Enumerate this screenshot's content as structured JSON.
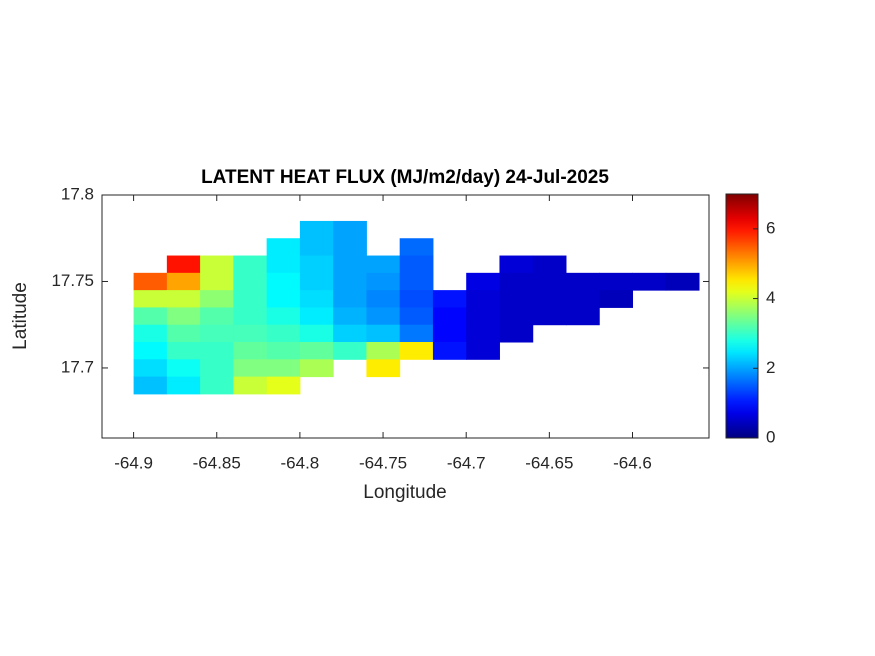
{
  "chart_data": {
    "type": "heatmap",
    "title": "LATENT HEAT FLUX (MJ/m2/day) 24-Jul-2025",
    "xlabel": "Longitude",
    "ylabel": "Latitude",
    "x": [
      -64.89,
      -64.87,
      -64.85,
      -64.83,
      -64.81,
      -64.79,
      -64.77,
      -64.75,
      -64.73,
      -64.71,
      -64.69,
      -64.67,
      -64.65,
      -64.63,
      -64.61,
      -64.59,
      -64.57
    ],
    "y": [
      17.79,
      17.78,
      17.77,
      17.76,
      17.75,
      17.74,
      17.73,
      17.72,
      17.71,
      17.7,
      17.69,
      17.68
    ],
    "z": [
      [
        null,
        null,
        null,
        null,
        null,
        null,
        null,
        null,
        null,
        null,
        null,
        null,
        null,
        null,
        null,
        null,
        null
      ],
      [
        null,
        null,
        null,
        null,
        null,
        2.2,
        2.0,
        null,
        null,
        null,
        null,
        null,
        null,
        null,
        null,
        null,
        null
      ],
      [
        null,
        null,
        null,
        null,
        2.5,
        2.2,
        2.0,
        null,
        1.6,
        null,
        null,
        null,
        null,
        null,
        null,
        null,
        null
      ],
      [
        null,
        6.0,
        4.0,
        3.0,
        2.5,
        2.3,
        2.0,
        2.0,
        1.5,
        null,
        null,
        0.6,
        0.5,
        null,
        null,
        null,
        null
      ],
      [
        5.5,
        5.0,
        4.0,
        3.0,
        2.6,
        2.3,
        2.0,
        1.9,
        1.5,
        null,
        0.7,
        0.5,
        0.5,
        0.5,
        0.5,
        0.5,
        0.4
      ],
      [
        4.0,
        4.0,
        3.6,
        3.0,
        2.6,
        2.4,
        2.0,
        1.8,
        1.4,
        1.0,
        0.6,
        0.5,
        0.5,
        0.5,
        0.4,
        null,
        null
      ],
      [
        3.2,
        3.5,
        3.2,
        3.0,
        2.8,
        2.5,
        2.1,
        1.9,
        1.5,
        0.9,
        0.6,
        0.5,
        0.5,
        0.5,
        null,
        null,
        null
      ],
      [
        2.8,
        3.2,
        3.1,
        3.1,
        3.0,
        2.8,
        2.3,
        2.2,
        1.7,
        0.9,
        0.6,
        0.5,
        null,
        null,
        null,
        null,
        null
      ],
      [
        2.6,
        3.0,
        3.0,
        3.3,
        3.2,
        3.3,
        3.0,
        3.8,
        4.5,
        1.0,
        0.6,
        null,
        null,
        null,
        null,
        null,
        null
      ],
      [
        2.4,
        2.7,
        3.0,
        3.5,
        3.5,
        3.8,
        null,
        4.5,
        null,
        null,
        null,
        null,
        null,
        null,
        null,
        null,
        null
      ],
      [
        2.2,
        2.5,
        3.0,
        4.0,
        4.2,
        null,
        null,
        null,
        null,
        null,
        null,
        null,
        null,
        null,
        null,
        null,
        null
      ],
      [
        null,
        null,
        null,
        null,
        null,
        null,
        null,
        null,
        null,
        null,
        null,
        null,
        null,
        null,
        null,
        null,
        null
      ]
    ],
    "xlim": [
      -64.919,
      -64.554
    ],
    "ylim": [
      17.6595,
      17.8
    ],
    "xticks": [
      -64.9,
      -64.85,
      -64.8,
      -64.75,
      -64.7,
      -64.65,
      -64.6
    ],
    "yticks": [
      17.7,
      17.75,
      17.8
    ],
    "clim": [
      0,
      7
    ],
    "cticks": [
      0,
      2,
      4,
      6
    ],
    "colormap": "jet"
  }
}
